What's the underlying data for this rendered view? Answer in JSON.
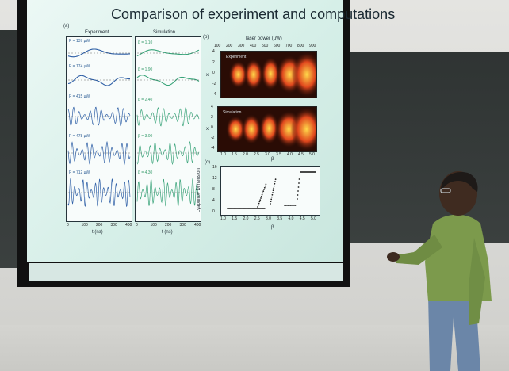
{
  "slide": {
    "title": "Comparison of experiment and computations",
    "panel_a_letter": "(a)",
    "panel_b_letter": "(b)",
    "panel_c_letter": "(c)",
    "experiment_label": "Experiment",
    "simulation_label": "Simulation",
    "experiment_legends": [
      "P = 137 µW",
      "P = 174 µW",
      "P = 415 µW",
      "P = 478 µW",
      "P = 712 µW"
    ],
    "simulation_legends": [
      "β = 1.10",
      "β = 1.90",
      "β = 2.40",
      "β = 3.00",
      "β = 4.30"
    ],
    "time_axis_label": "t (ns)",
    "time_ticks": [
      "0",
      "100",
      "200",
      "300",
      "400"
    ],
    "laser_power_label": "laser power (µW)",
    "laser_power_ticks": [
      "100",
      "200",
      "300",
      "400",
      "500",
      "600",
      "700",
      "800",
      "900"
    ],
    "x_axis_label": "x",
    "x_ticks": [
      "4",
      "2",
      "0",
      "-2",
      "-4"
    ],
    "cmap_experiment_label": "Experiment",
    "cmap_simulation_label": "Simulation",
    "beta_ticks": [
      "1.0",
      "1.5",
      "2.0",
      "2.5",
      "3.0",
      "3.5",
      "4.0",
      "4.5",
      "5.0"
    ],
    "beta_label": "β",
    "lyapunov_label": "Lyapunov Dimension",
    "lyapunov_ticks": [
      "16",
      "12",
      "8",
      "4",
      "0"
    ]
  },
  "colors": {
    "screen": "#d9f0ea",
    "experiment_trace": "#2e5fa6",
    "simulation_trace": "#3aa47a",
    "heat_hot": "#ffd84a",
    "heat_cold": "#2a0c05"
  }
}
